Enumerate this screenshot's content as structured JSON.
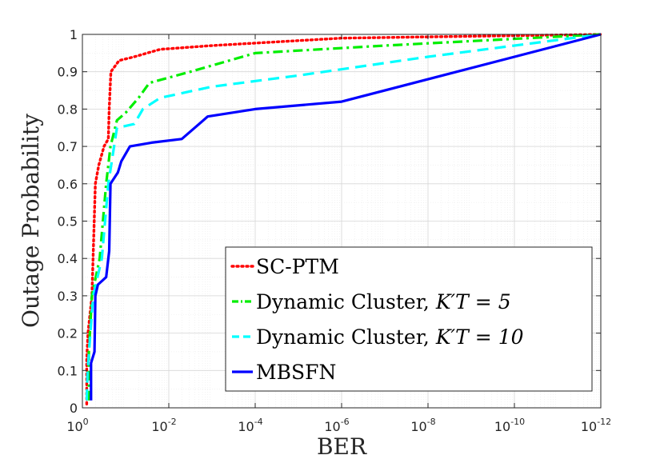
{
  "chart_data": {
    "type": "line",
    "title": "",
    "xlabel": "BER",
    "ylabel": "Outage Probability",
    "x_scale": "log-reversed",
    "xlim_exponent": [
      0,
      -12
    ],
    "ylim": [
      0,
      1
    ],
    "grid": true,
    "legend_position": "bottom-right",
    "x_ticks": [
      {
        "base": "10",
        "exp": "0",
        "value_exp": 0
      },
      {
        "base": "10",
        "exp": "-2",
        "value_exp": -2
      },
      {
        "base": "10",
        "exp": "-4",
        "value_exp": -4
      },
      {
        "base": "10",
        "exp": "-6",
        "value_exp": -6
      },
      {
        "base": "10",
        "exp": "-8",
        "value_exp": -8
      },
      {
        "base": "10",
        "exp": "-10",
        "value_exp": -10
      },
      {
        "base": "10",
        "exp": "-12",
        "value_exp": -12
      }
    ],
    "y_ticks": [
      {
        "label": "0",
        "value": 0
      },
      {
        "label": "0.1",
        "value": 0.1
      },
      {
        "label": "0.2",
        "value": 0.2
      },
      {
        "label": "0.3",
        "value": 0.3
      },
      {
        "label": "0.4",
        "value": 0.4
      },
      {
        "label": "0.5",
        "value": 0.5
      },
      {
        "label": "0.6",
        "value": 0.6
      },
      {
        "label": "0.7",
        "value": 0.7
      },
      {
        "label": "0.8",
        "value": 0.8
      },
      {
        "label": "0.9",
        "value": 0.9
      },
      {
        "label": "1",
        "value": 1
      }
    ],
    "series": [
      {
        "name": "SC-PTM",
        "legend_text": "SC-PTM",
        "legend_math": "",
        "color": "#ff0000",
        "style": "dotted",
        "points": [
          [
            -0.1,
            0.01
          ],
          [
            -0.1,
            0.13
          ],
          [
            -0.13,
            0.2
          ],
          [
            -0.22,
            0.3
          ],
          [
            -0.3,
            0.6
          ],
          [
            -0.38,
            0.65
          ],
          [
            -0.5,
            0.7
          ],
          [
            -0.6,
            0.72
          ],
          [
            -0.62,
            0.8
          ],
          [
            -0.66,
            0.9
          ],
          [
            -0.85,
            0.93
          ],
          [
            -1.2,
            0.94
          ],
          [
            -1.8,
            0.96
          ],
          [
            -3,
            0.97
          ],
          [
            -6,
            0.99
          ],
          [
            -12,
            1.0
          ]
        ]
      },
      {
        "name": "Dynamic Cluster K'_T=5",
        "legend_text": "Dynamic Cluster, ",
        "legend_math": "K′T = 5",
        "color": "#00ee00",
        "style": "dashdot",
        "points": [
          [
            -0.15,
            0.02
          ],
          [
            -0.15,
            0.15
          ],
          [
            -0.22,
            0.3
          ],
          [
            -0.4,
            0.4
          ],
          [
            -0.55,
            0.6
          ],
          [
            -0.65,
            0.7
          ],
          [
            -0.8,
            0.77
          ],
          [
            -1.0,
            0.79
          ],
          [
            -1.3,
            0.83
          ],
          [
            -1.55,
            0.87
          ],
          [
            -2.5,
            0.9
          ],
          [
            -4.0,
            0.95
          ],
          [
            -7,
            0.97
          ],
          [
            -12,
            1.0
          ]
        ]
      },
      {
        "name": "Dynamic Cluster K'_T=10",
        "legend_text": "Dynamic Cluster, ",
        "legend_math": "K′T = 10",
        "color": "#00ffff",
        "style": "dashed",
        "points": [
          [
            -0.1,
            0.02
          ],
          [
            -0.12,
            0.1
          ],
          [
            -0.25,
            0.3
          ],
          [
            -0.45,
            0.4
          ],
          [
            -0.6,
            0.6
          ],
          [
            -0.8,
            0.75
          ],
          [
            -1.2,
            0.76
          ],
          [
            -1.4,
            0.8
          ],
          [
            -1.8,
            0.83
          ],
          [
            -3,
            0.86
          ],
          [
            -5,
            0.89
          ],
          [
            -8,
            0.94
          ],
          [
            -12,
            1.0
          ]
        ]
      },
      {
        "name": "MBSFN",
        "legend_text": "MBSFN",
        "legend_math": "",
        "color": "#0000ff",
        "style": "solid",
        "points": [
          [
            -0.2,
            0.02
          ],
          [
            -0.2,
            0.12
          ],
          [
            -0.28,
            0.15
          ],
          [
            -0.3,
            0.3
          ],
          [
            -0.36,
            0.33
          ],
          [
            -0.55,
            0.35
          ],
          [
            -0.62,
            0.42
          ],
          [
            -0.65,
            0.6
          ],
          [
            -0.82,
            0.63
          ],
          [
            -0.9,
            0.66
          ],
          [
            -1.1,
            0.7
          ],
          [
            -1.6,
            0.71
          ],
          [
            -2.3,
            0.72
          ],
          [
            -2.6,
            0.75
          ],
          [
            -2.9,
            0.78
          ],
          [
            -4,
            0.8
          ],
          [
            -6,
            0.82
          ],
          [
            -12,
            1.0
          ]
        ]
      }
    ]
  }
}
